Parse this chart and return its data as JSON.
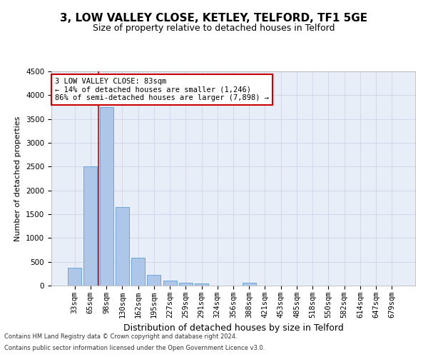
{
  "title": "3, LOW VALLEY CLOSE, KETLEY, TELFORD, TF1 5GE",
  "subtitle": "Size of property relative to detached houses in Telford",
  "xlabel": "Distribution of detached houses by size in Telford",
  "ylabel": "Number of detached properties",
  "footnote1": "Contains HM Land Registry data © Crown copyright and database right 2024.",
  "footnote2": "Contains public sector information licensed under the Open Government Licence v3.0.",
  "categories": [
    "33sqm",
    "65sqm",
    "98sqm",
    "130sqm",
    "162sqm",
    "195sqm",
    "227sqm",
    "259sqm",
    "291sqm",
    "324sqm",
    "356sqm",
    "388sqm",
    "421sqm",
    "453sqm",
    "485sqm",
    "518sqm",
    "550sqm",
    "582sqm",
    "614sqm",
    "647sqm",
    "679sqm"
  ],
  "values": [
    370,
    2500,
    3750,
    1650,
    590,
    220,
    105,
    60,
    40,
    0,
    0,
    55,
    0,
    0,
    0,
    0,
    0,
    0,
    0,
    0,
    0
  ],
  "bar_color": "#aec6e8",
  "bar_edge_color": "#5a9fd4",
  "vline_x": 1.5,
  "vline_color": "#cc0000",
  "annotation_line1": "3 LOW VALLEY CLOSE: 83sqm",
  "annotation_line2": "← 14% of detached houses are smaller (1,246)",
  "annotation_line3": "86% of semi-detached houses are larger (7,898) →",
  "annotation_box_color": "#ffffff",
  "annotation_box_edge": "#cc0000",
  "ylim": [
    0,
    4500
  ],
  "yticks": [
    0,
    500,
    1000,
    1500,
    2000,
    2500,
    3000,
    3500,
    4000,
    4500
  ],
  "grid_color": "#cdd5e5",
  "bg_color": "#e8eef8",
  "title_fontsize": 11,
  "subtitle_fontsize": 9,
  "xlabel_fontsize": 9,
  "ylabel_fontsize": 8,
  "tick_fontsize": 7.5,
  "annot_fontsize": 7.5
}
